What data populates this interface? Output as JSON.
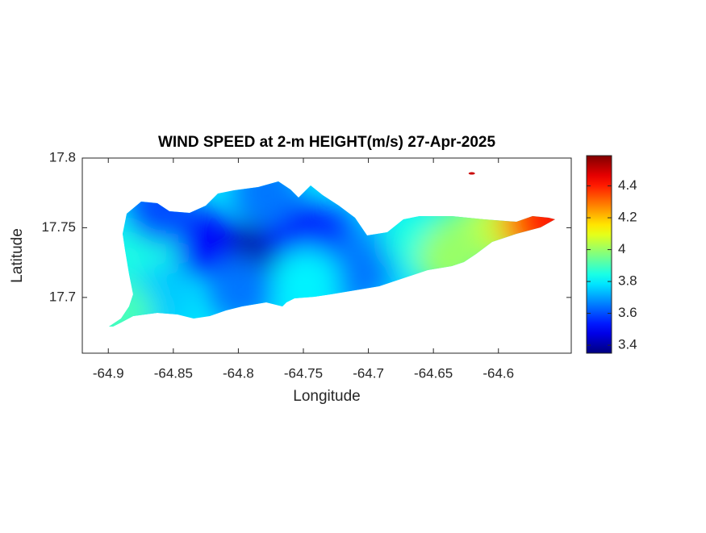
{
  "chart_data": {
    "type": "field",
    "title": "WIND SPEED at 2-m HEIGHT(m/s) 27-Apr-2025",
    "x_label": "Longitude",
    "y_label": "Latitude",
    "xlim": [
      -64.92,
      -64.544
    ],
    "xticks": [
      -64.9,
      -64.85,
      -64.8,
      -64.75,
      -64.7,
      -64.65,
      -64.6
    ],
    "ylim": [
      17.66,
      17.8
    ],
    "yticks": [
      17.7,
      17.75,
      17.8
    ],
    "colormap": "jet",
    "clim": [
      3.35,
      4.59
    ],
    "cticks": [
      3.4,
      3.6,
      3.8,
      4,
      4.2,
      4.4
    ],
    "points": [
      {
        "lon": -64.7975,
        "lat": 17.728,
        "value": 3.38
      },
      {
        "lon": -64.829,
        "lat": 17.74,
        "value": 3.5
      },
      {
        "lon": -64.754,
        "lat": 17.746,
        "value": 3.5
      },
      {
        "lon": -64.729,
        "lat": 17.74,
        "value": 3.55
      },
      {
        "lon": -64.872,
        "lat": 17.734,
        "value": 3.85
      },
      {
        "lon": -64.86,
        "lat": 17.7,
        "value": 3.75
      },
      {
        "lon": -64.891,
        "lat": 17.688,
        "value": 3.9
      },
      {
        "lon": -64.798,
        "lat": 17.705,
        "value": 3.65
      },
      {
        "lon": -64.698,
        "lat": 17.728,
        "value": 3.7
      },
      {
        "lon": -64.661,
        "lat": 17.74,
        "value": 3.85
      },
      {
        "lon": -64.624,
        "lat": 17.746,
        "value": 3.95
      },
      {
        "lon": -64.599,
        "lat": 17.749,
        "value": 4.05
      },
      {
        "lon": -64.574,
        "lat": 17.754,
        "value": 4.25
      },
      {
        "lon": -64.561,
        "lat": 17.756,
        "value": 4.4
      },
      {
        "lon": -64.779,
        "lat": 17.775,
        "value": 3.65
      },
      {
        "lon": -64.86,
        "lat": 17.763,
        "value": 3.6
      },
      {
        "lon": -64.71,
        "lat": 17.717,
        "value": 3.65
      },
      {
        "lon": -64.636,
        "lat": 17.728,
        "value": 4.0
      },
      {
        "lon": -64.748,
        "lat": 17.711,
        "value": 3.8
      }
    ],
    "isolated_points": [
      {
        "lon": -64.6205,
        "lat": 17.789,
        "value": 4.5
      }
    ]
  }
}
